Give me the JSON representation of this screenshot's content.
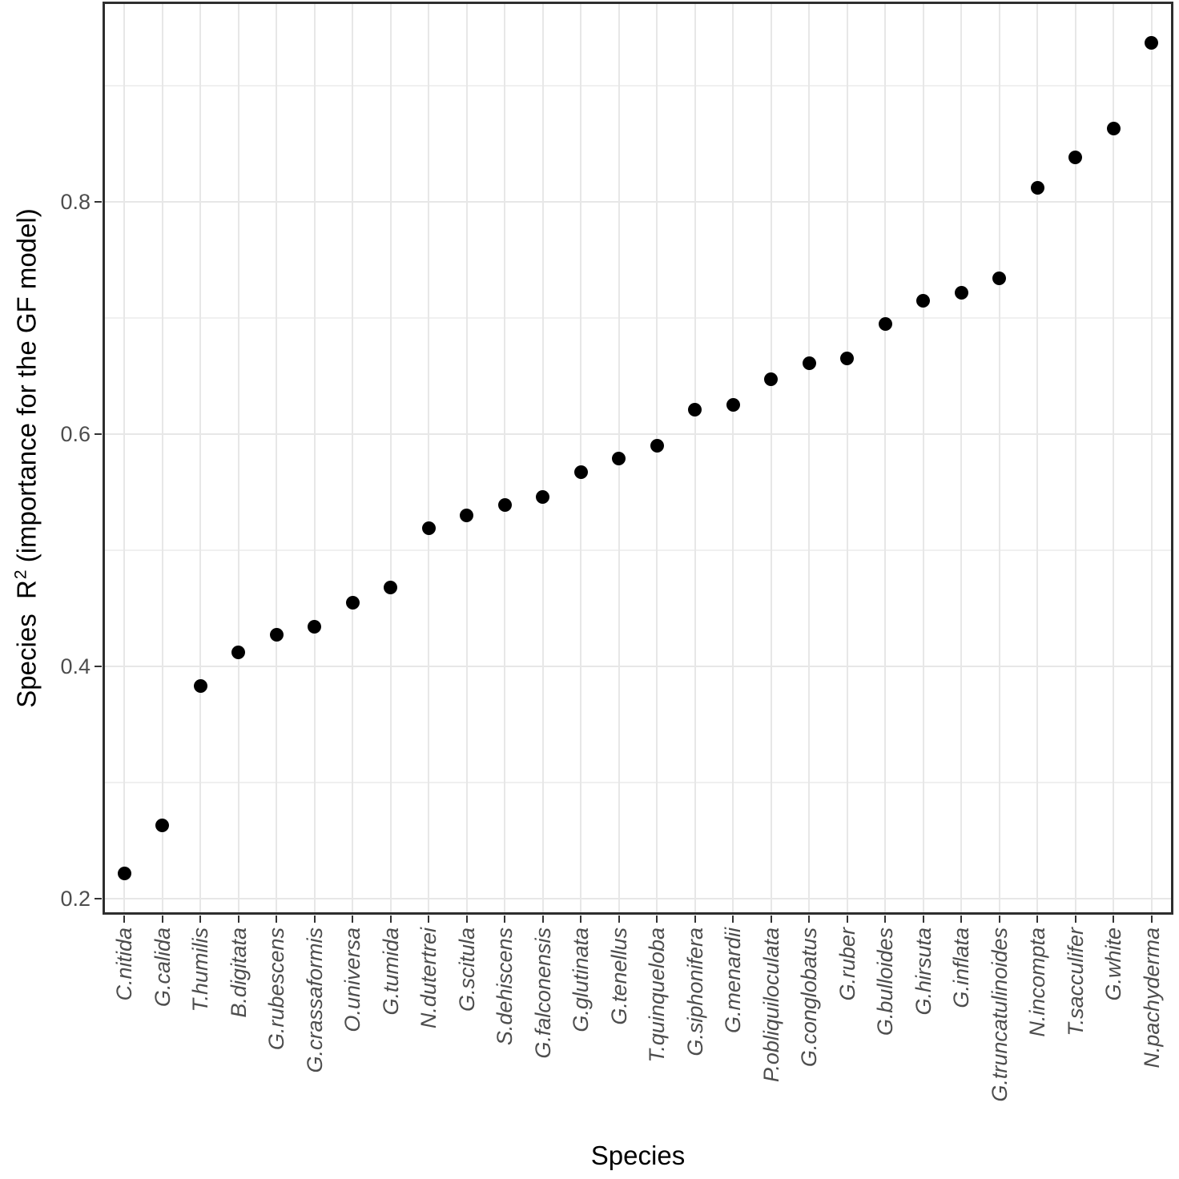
{
  "chart_data": {
    "type": "scatter",
    "title": "",
    "xlabel": "Species",
    "ylabel": "Species R² (importance for the GF model)",
    "ylabel_parts": {
      "prefix": "Species  R",
      "sup": "2",
      "suffix": " (importance for the GF model)"
    },
    "categories": [
      "C.nitida",
      "G.calida",
      "T.humilis",
      "B.digitata",
      "G.rubescens",
      "G.crassaformis",
      "O.universa",
      "G.tumida",
      "N.dutertrei",
      "G.scitula",
      "S.dehiscens",
      "G.falconensis",
      "G.glutinata",
      "G.tenellus",
      "T.quinqueloba",
      "G.siphonifera",
      "G.menardii",
      "P.obliquiloculata",
      "G.conglobatus",
      "G.ruber",
      "G.bulloides",
      "G.hirsuta",
      "G.inflata",
      "G.truncatulinoides",
      "N.incompta",
      "T.sacculifer",
      "G.white",
      "N.pachyderma"
    ],
    "values": [
      0.222,
      0.263,
      0.383,
      0.412,
      0.427,
      0.434,
      0.455,
      0.468,
      0.519,
      0.53,
      0.539,
      0.546,
      0.567,
      0.579,
      0.59,
      0.621,
      0.625,
      0.647,
      0.661,
      0.665,
      0.695,
      0.715,
      0.722,
      0.734,
      0.812,
      0.838,
      0.863,
      0.937
    ],
    "yticks": [
      0.2,
      0.4,
      0.6,
      0.8
    ],
    "ytick_labels": [
      "0.2",
      "0.4",
      "0.6",
      "0.8"
    ],
    "yminor": [
      0.3,
      0.5,
      0.7,
      0.9
    ],
    "ylim": [
      0.186,
      0.972
    ],
    "grid": "major+minor",
    "legend": "none",
    "point_color": "#000000",
    "colors": {
      "panel_border": "#2e2e2e",
      "grid_major": "#e7e7e7",
      "grid_minor": "#f0f0f0",
      "tick": "#333333",
      "tick_label": "#4d4d4d",
      "axis_title": "#000000"
    }
  }
}
